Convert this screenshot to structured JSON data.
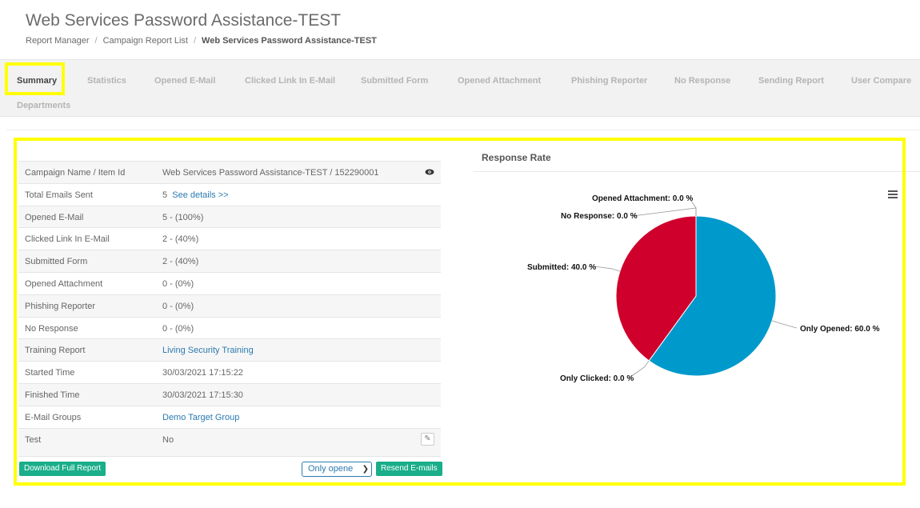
{
  "page": {
    "title": "Web Services Password Assistance-TEST",
    "breadcrumb": [
      "Report Manager",
      "Campaign Report List",
      "Web Services Password Assistance-TEST"
    ]
  },
  "tabs": [
    {
      "label": "Summary",
      "active": true
    },
    {
      "label": "Statistics"
    },
    {
      "label": "Opened E-Mail"
    },
    {
      "label": "Clicked Link In E-Mail"
    },
    {
      "label": "Submitted Form"
    },
    {
      "label": "Opened Attachment"
    },
    {
      "label": "Phishing Reporter"
    },
    {
      "label": "No Response"
    },
    {
      "label": "Sending Report"
    },
    {
      "label": "User Compare"
    },
    {
      "label": "Departments"
    }
  ],
  "summary": {
    "rows": [
      {
        "label": "Campaign Name / Item Id",
        "value": "Web Services Password Assistance-TEST / 152290001",
        "icon": "eye-icon"
      },
      {
        "label": "Total Emails Sent",
        "value": "5",
        "link": "See details >>"
      },
      {
        "label": "Opened E-Mail",
        "value": "5 - (100%)"
      },
      {
        "label": "Clicked Link In E-Mail",
        "value": "2 - (40%)"
      },
      {
        "label": "Submitted Form",
        "value": "2 - (40%)"
      },
      {
        "label": "Opened Attachment",
        "value": "0 - (0%)"
      },
      {
        "label": "Phishing Reporter",
        "value": "0 - (0%)"
      },
      {
        "label": "No Response",
        "value": "0 - (0%)"
      },
      {
        "label": "Training Report",
        "link": "Living Security Training"
      },
      {
        "label": "Started Time",
        "value": "30/03/2021 17:15:22"
      },
      {
        "label": "Finished Time",
        "value": "30/03/2021 17:15:30"
      },
      {
        "label": "E-Mail Groups",
        "link": "Demo Target Group"
      },
      {
        "label": "Test",
        "value": "No",
        "icon": "edit-icon"
      }
    ],
    "download_label": "Download Full Report",
    "select_value": "Only opene",
    "resend_label": "Resend E-mails"
  },
  "chart": {
    "title": "Response Rate",
    "colors": {
      "only_opened": "#0099cc",
      "submitted": "#d0002c"
    }
  },
  "chart_data": {
    "type": "pie",
    "title": "Response Rate",
    "slices": [
      {
        "name": "Only Opened",
        "value": 60.0,
        "label": "Only Opened: 60.0 %",
        "color": "#0099cc"
      },
      {
        "name": "Only Clicked",
        "value": 0.0,
        "label": "Only Clicked: 0.0 %"
      },
      {
        "name": "Submitted",
        "value": 40.0,
        "label": "Submitted: 40.0 %",
        "color": "#d0002c"
      },
      {
        "name": "No Response",
        "value": 0.0,
        "label": "No Response: 0.0 %"
      },
      {
        "name": "Opened Attachment",
        "value": 0.0,
        "label": "Opened Attachment: 0.0 %"
      }
    ]
  }
}
